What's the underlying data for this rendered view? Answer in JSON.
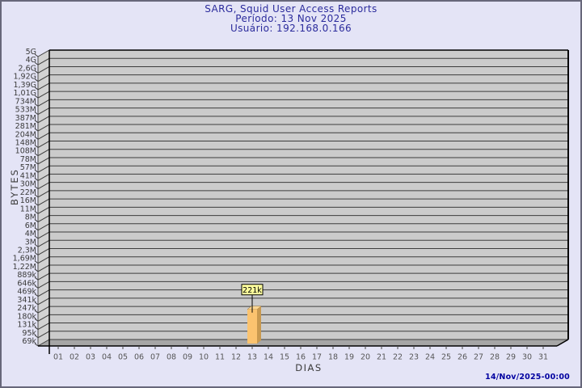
{
  "header": {
    "title": "SARG, Squid User Access Reports",
    "period": "Período: 13 Nov 2025",
    "user": "Usuário: 192.168.0.166"
  },
  "footer": {
    "timestamp": "14/Nov/2025-00:00"
  },
  "chart_data": {
    "type": "bar",
    "title": "SARG, Squid User Access Reports",
    "subtitle": [
      "Período: 13 Nov 2025",
      "Usuário: 192.168.0.166"
    ],
    "xlabel": "DIAS",
    "ylabel": "BYTES",
    "yscale": "log",
    "ylim": [
      69000,
      5000000000
    ],
    "unit": "bytes",
    "grid": "horizontal",
    "legend_position": "none",
    "y_tick_labels": [
      "5G",
      "4G",
      "2,6G",
      "1,92G",
      "1,39G",
      "1,01G",
      "734M",
      "533M",
      "387M",
      "281M",
      "204M",
      "148M",
      "108M",
      "78M",
      "57M",
      "41M",
      "30M",
      "22M",
      "16M",
      "11M",
      "8M",
      "6M",
      "4M",
      "3M",
      "2,3M",
      "1,69M",
      "1,22M",
      "889k",
      "646k",
      "469k",
      "341k",
      "247k",
      "180k",
      "131k",
      "95k",
      "69k"
    ],
    "categories": [
      "01",
      "02",
      "03",
      "04",
      "05",
      "06",
      "07",
      "08",
      "09",
      "10",
      "11",
      "12",
      "13",
      "14",
      "15",
      "16",
      "17",
      "18",
      "19",
      "20",
      "21",
      "22",
      "23",
      "24",
      "25",
      "26",
      "27",
      "28",
      "29",
      "30",
      "31"
    ],
    "values": [
      0,
      0,
      0,
      0,
      0,
      0,
      0,
      0,
      0,
      0,
      0,
      0,
      221000,
      0,
      0,
      0,
      0,
      0,
      0,
      0,
      0,
      0,
      0,
      0,
      0,
      0,
      0,
      0,
      0,
      0,
      0
    ],
    "value_labels": [
      "",
      "",
      "",
      "",
      "",
      "",
      "",
      "",
      "",
      "",
      "",
      "",
      "221k",
      "",
      "",
      "",
      "",
      "",
      "",
      "",
      "",
      "",
      "",
      "",
      "",
      "",
      "",
      "",
      "",
      "",
      ""
    ],
    "colors": {
      "background": "#e4e4f6",
      "title": "#2b2b9c",
      "timestamp": "#0000a0",
      "plot_face": "#cbcbcb",
      "plot_wall": "#d2d2d2",
      "plot_floor": "#a6a6a6",
      "grid_line": "#3c3c3c",
      "axis_edge": "#000000",
      "bar_front": "#fbc36f",
      "bar_side": "#c8994f",
      "bar_top": "#fdd793",
      "value_box_bg": "#ffff9c",
      "value_box_border": "#000000",
      "y_label_color": "#3a3a3a",
      "x_label_color": "#565656"
    }
  }
}
